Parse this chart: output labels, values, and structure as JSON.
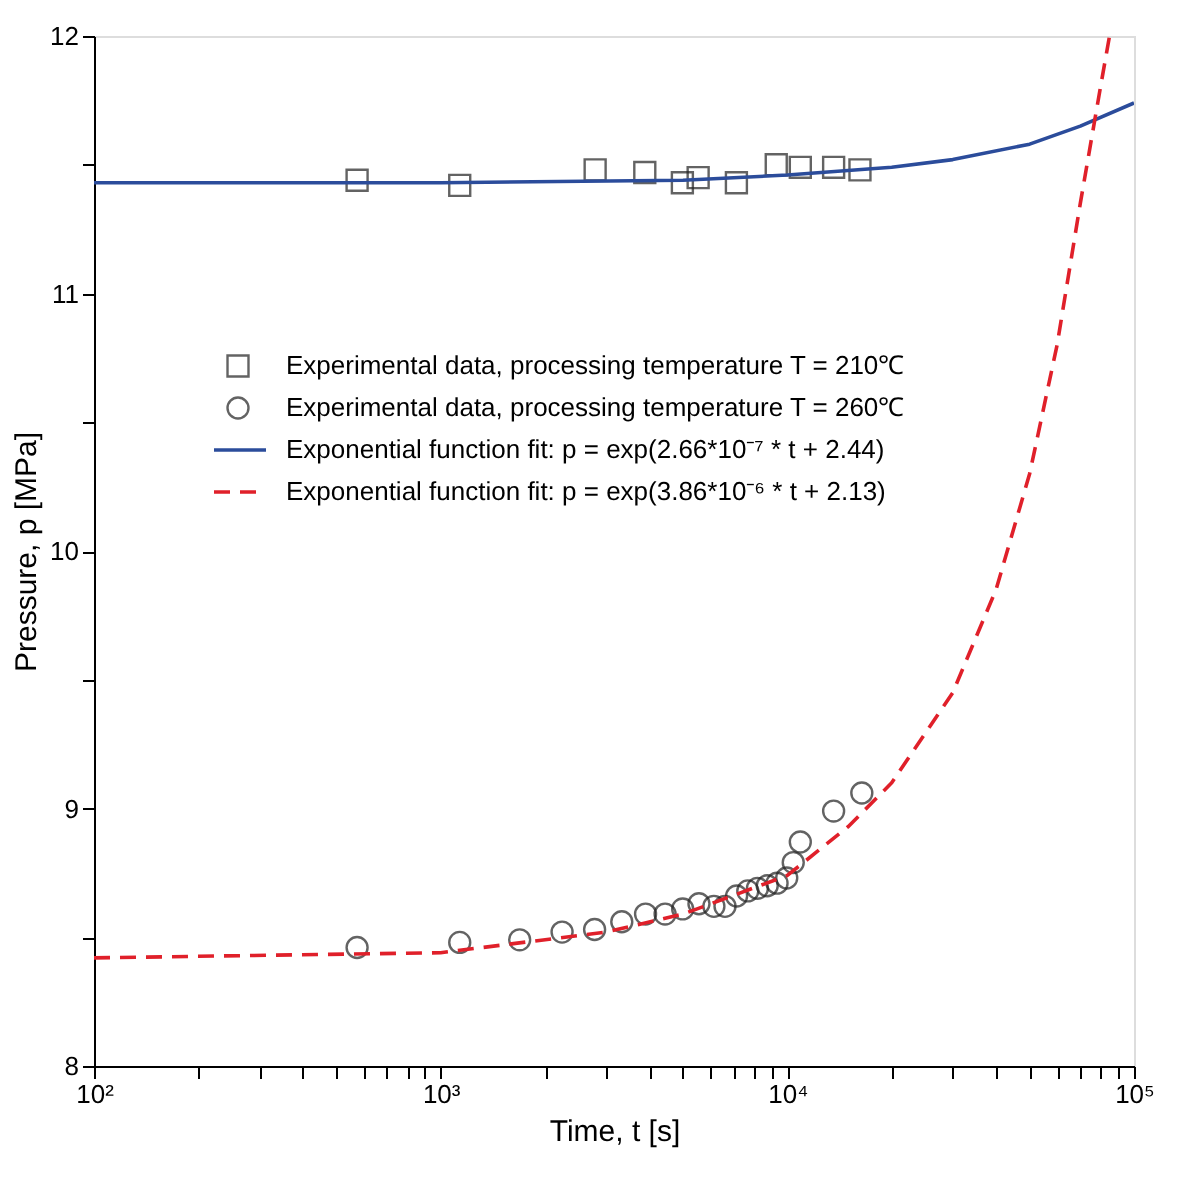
{
  "chart_data": {
    "type": "scatter",
    "xlabel": "Time, t [s]",
    "ylabel": "Pressure, p [MPa]",
    "log": "x",
    "legend": "top left",
    "grid": false,
    "xlim": [
      100,
      100000
    ],
    "xticks": [
      {
        "value": 100,
        "label": "10²"
      },
      {
        "value": 200,
        "label": null
      },
      {
        "value": 300,
        "label": null
      },
      {
        "value": 400,
        "label": null
      },
      {
        "value": 500,
        "label": null
      },
      {
        "value": 600,
        "label": null
      },
      {
        "value": 700,
        "label": null
      },
      {
        "value": 800,
        "label": null
      },
      {
        "value": 900,
        "label": null
      },
      {
        "value": 1000,
        "label": "10³"
      },
      {
        "value": 2000,
        "label": null
      },
      {
        "value": 3000,
        "label": null
      },
      {
        "value": 4000,
        "label": null
      },
      {
        "value": 5000,
        "label": null
      },
      {
        "value": 6000,
        "label": null
      },
      {
        "value": 7000,
        "label": null
      },
      {
        "value": 8000,
        "label": null
      },
      {
        "value": 9000,
        "label": null
      },
      {
        "value": 10000,
        "label": "10⁴"
      },
      {
        "value": 20000,
        "label": null
      },
      {
        "value": 30000,
        "label": null
      },
      {
        "value": 40000,
        "label": null
      },
      {
        "value": 50000,
        "label": null
      },
      {
        "value": 60000,
        "label": null
      },
      {
        "value": 70000,
        "label": null
      },
      {
        "value": 80000,
        "label": null
      },
      {
        "value": 90000,
        "label": null
      },
      {
        "value": 100000,
        "label": "10⁵"
      }
    ],
    "ylim": [
      8,
      12
    ],
    "yticks": [
      8,
      {
        "value": 8.5,
        "label": null
      },
      9,
      {
        "value": 9.5,
        "label": null
      },
      10,
      {
        "value": 10.5,
        "label": null
      },
      11,
      {
        "value": 11.5,
        "label": null
      },
      12
    ],
    "series": [
      {
        "name": "Experimental data, processing temperature T = 210℃",
        "marker": "square",
        "color": "#222222",
        "x": [
          574,
          1135,
          2790,
          3880,
          4980,
          5530,
          7130,
          9290,
          10900,
          13600,
          16200
        ],
        "values": [
          11.44,
          11.42,
          11.48,
          11.47,
          11.43,
          11.45,
          11.43,
          11.5,
          11.49,
          11.49,
          11.48
        ]
      },
      {
        "name": "Experimental data, processing temperature T = 260℃",
        "marker": "circle",
        "color": "#222222",
        "x": [
          574,
          1135,
          1690,
          2240,
          2780,
          3330,
          3900,
          4440,
          4990,
          5560,
          6140,
          6610,
          7140,
          7690,
          8200,
          8750,
          9340,
          9960,
          10400,
          10900,
          13600,
          16400
        ],
        "values": [
          8.46,
          8.48,
          8.49,
          8.52,
          8.53,
          8.56,
          8.59,
          8.59,
          8.61,
          8.63,
          8.62,
          8.62,
          8.66,
          8.68,
          8.69,
          8.7,
          8.71,
          8.73,
          8.79,
          8.87,
          8.99,
          9.06
        ]
      },
      {
        "name": "Exponential function fit: p = exp(2.66*10⁻⁷ * t + 2.44)",
        "type": "line",
        "line_style": "solid",
        "color": "#2b4c9b",
        "x": [
          100,
          1000,
          5000,
          10000,
          20000,
          30000,
          50000,
          70000,
          100000
        ],
        "values": [
          11.43,
          11.43,
          11.44,
          11.46,
          11.49,
          11.52,
          11.58,
          11.65,
          11.74
        ]
      },
      {
        "name": "Exponential function fit: p = exp(3.86*10⁻⁶ * t + 2.13)",
        "type": "line",
        "line_style": "dashed",
        "color": "#e0202a",
        "x": [
          100,
          1000,
          3000,
          5000,
          10000,
          15000,
          20000,
          30000,
          40000,
          50000,
          60000,
          70000,
          80000,
          85000
        ],
        "values": [
          8.42,
          8.44,
          8.52,
          8.59,
          8.74,
          8.93,
          9.1,
          9.45,
          9.85,
          10.3,
          10.8,
          11.35,
          11.8,
          12.0
        ]
      }
    ]
  }
}
